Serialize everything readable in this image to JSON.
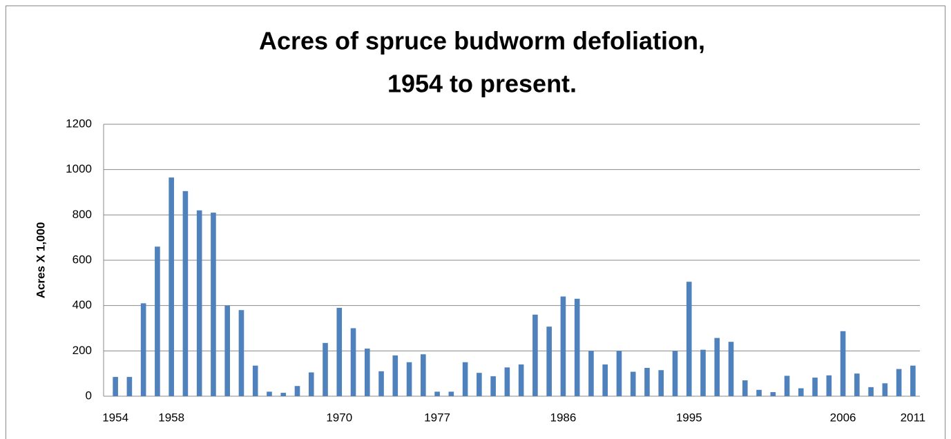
{
  "chart_data": {
    "type": "bar",
    "title": [
      "Acres of  spruce budworm defoliation,",
      "1954 to present."
    ],
    "y_label": "Acres  X  1,000",
    "categories": [
      "1954",
      null,
      null,
      null,
      "1958",
      null,
      null,
      null,
      null,
      null,
      null,
      null,
      null,
      null,
      null,
      null,
      "1970",
      null,
      null,
      null,
      null,
      null,
      null,
      "1977",
      null,
      null,
      null,
      null,
      null,
      null,
      null,
      null,
      "1986",
      null,
      null,
      null,
      null,
      null,
      null,
      null,
      null,
      "1995",
      null,
      null,
      null,
      null,
      null,
      null,
      null,
      null,
      null,
      null,
      "2006",
      null,
      null,
      null,
      null,
      "2011"
    ],
    "values": [
      85,
      85,
      410,
      660,
      965,
      905,
      820,
      810,
      400,
      380,
      135,
      20,
      15,
      45,
      105,
      235,
      390,
      300,
      210,
      110,
      180,
      150,
      185,
      20,
      20,
      150,
      103,
      88,
      127,
      140,
      360,
      307,
      440,
      430,
      200,
      140,
      200,
      108,
      125,
      115,
      200,
      505,
      205,
      257,
      240,
      70,
      28,
      18,
      90,
      35,
      82,
      92,
      287,
      100,
      40,
      57,
      120,
      135
    ],
    "color": "#4f81bd",
    "ylim": [
      0,
      1200
    ],
    "yticks": [
      0,
      200,
      400,
      600,
      800,
      1000,
      1200
    ],
    "grid": true
  }
}
